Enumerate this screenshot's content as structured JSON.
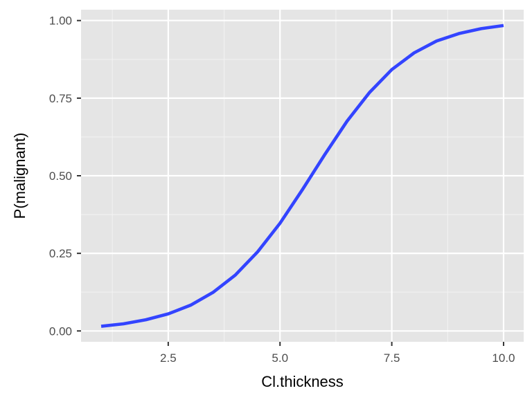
{
  "chart_data": {
    "type": "line",
    "xlabel": "Cl.thickness",
    "ylabel": "P(malignant)",
    "xlim": [
      0.55,
      10.45
    ],
    "ylim": [
      -0.035,
      1.035
    ],
    "x_ticks": [
      2.5,
      5.0,
      7.5,
      10.0
    ],
    "x_tick_labels": [
      "2.5",
      "5.0",
      "7.5",
      "10.0"
    ],
    "x_minor_ticks": [
      1.25,
      3.75,
      6.25,
      8.75
    ],
    "y_ticks": [
      0.0,
      0.25,
      0.5,
      0.75,
      1.0
    ],
    "y_tick_labels": [
      "0.00",
      "0.25",
      "0.50",
      "0.75",
      "1.00"
    ],
    "y_minor_ticks": [
      0.125,
      0.375,
      0.625,
      0.875
    ],
    "grid": true,
    "series": [
      {
        "color": "#3344ff",
        "x": [
          1.0,
          1.5,
          2.0,
          2.5,
          3.0,
          3.5,
          4.0,
          4.5,
          5.0,
          5.5,
          6.0,
          6.5,
          7.0,
          7.5,
          8.0,
          8.5,
          9.0,
          9.5,
          10.0
        ],
        "y": [
          0.015,
          0.023,
          0.036,
          0.055,
          0.083,
          0.124,
          0.18,
          0.255,
          0.347,
          0.455,
          0.568,
          0.676,
          0.768,
          0.842,
          0.896,
          0.934,
          0.958,
          0.974,
          0.984
        ]
      }
    ]
  },
  "colors": {
    "panel_background": "#e5e5e5",
    "grid_major": "#ffffff",
    "grid_minor": "#f2f2f2",
    "tick_mark": "#333333",
    "tick_label": "#4d4d4d",
    "axis_title": "#000000"
  }
}
